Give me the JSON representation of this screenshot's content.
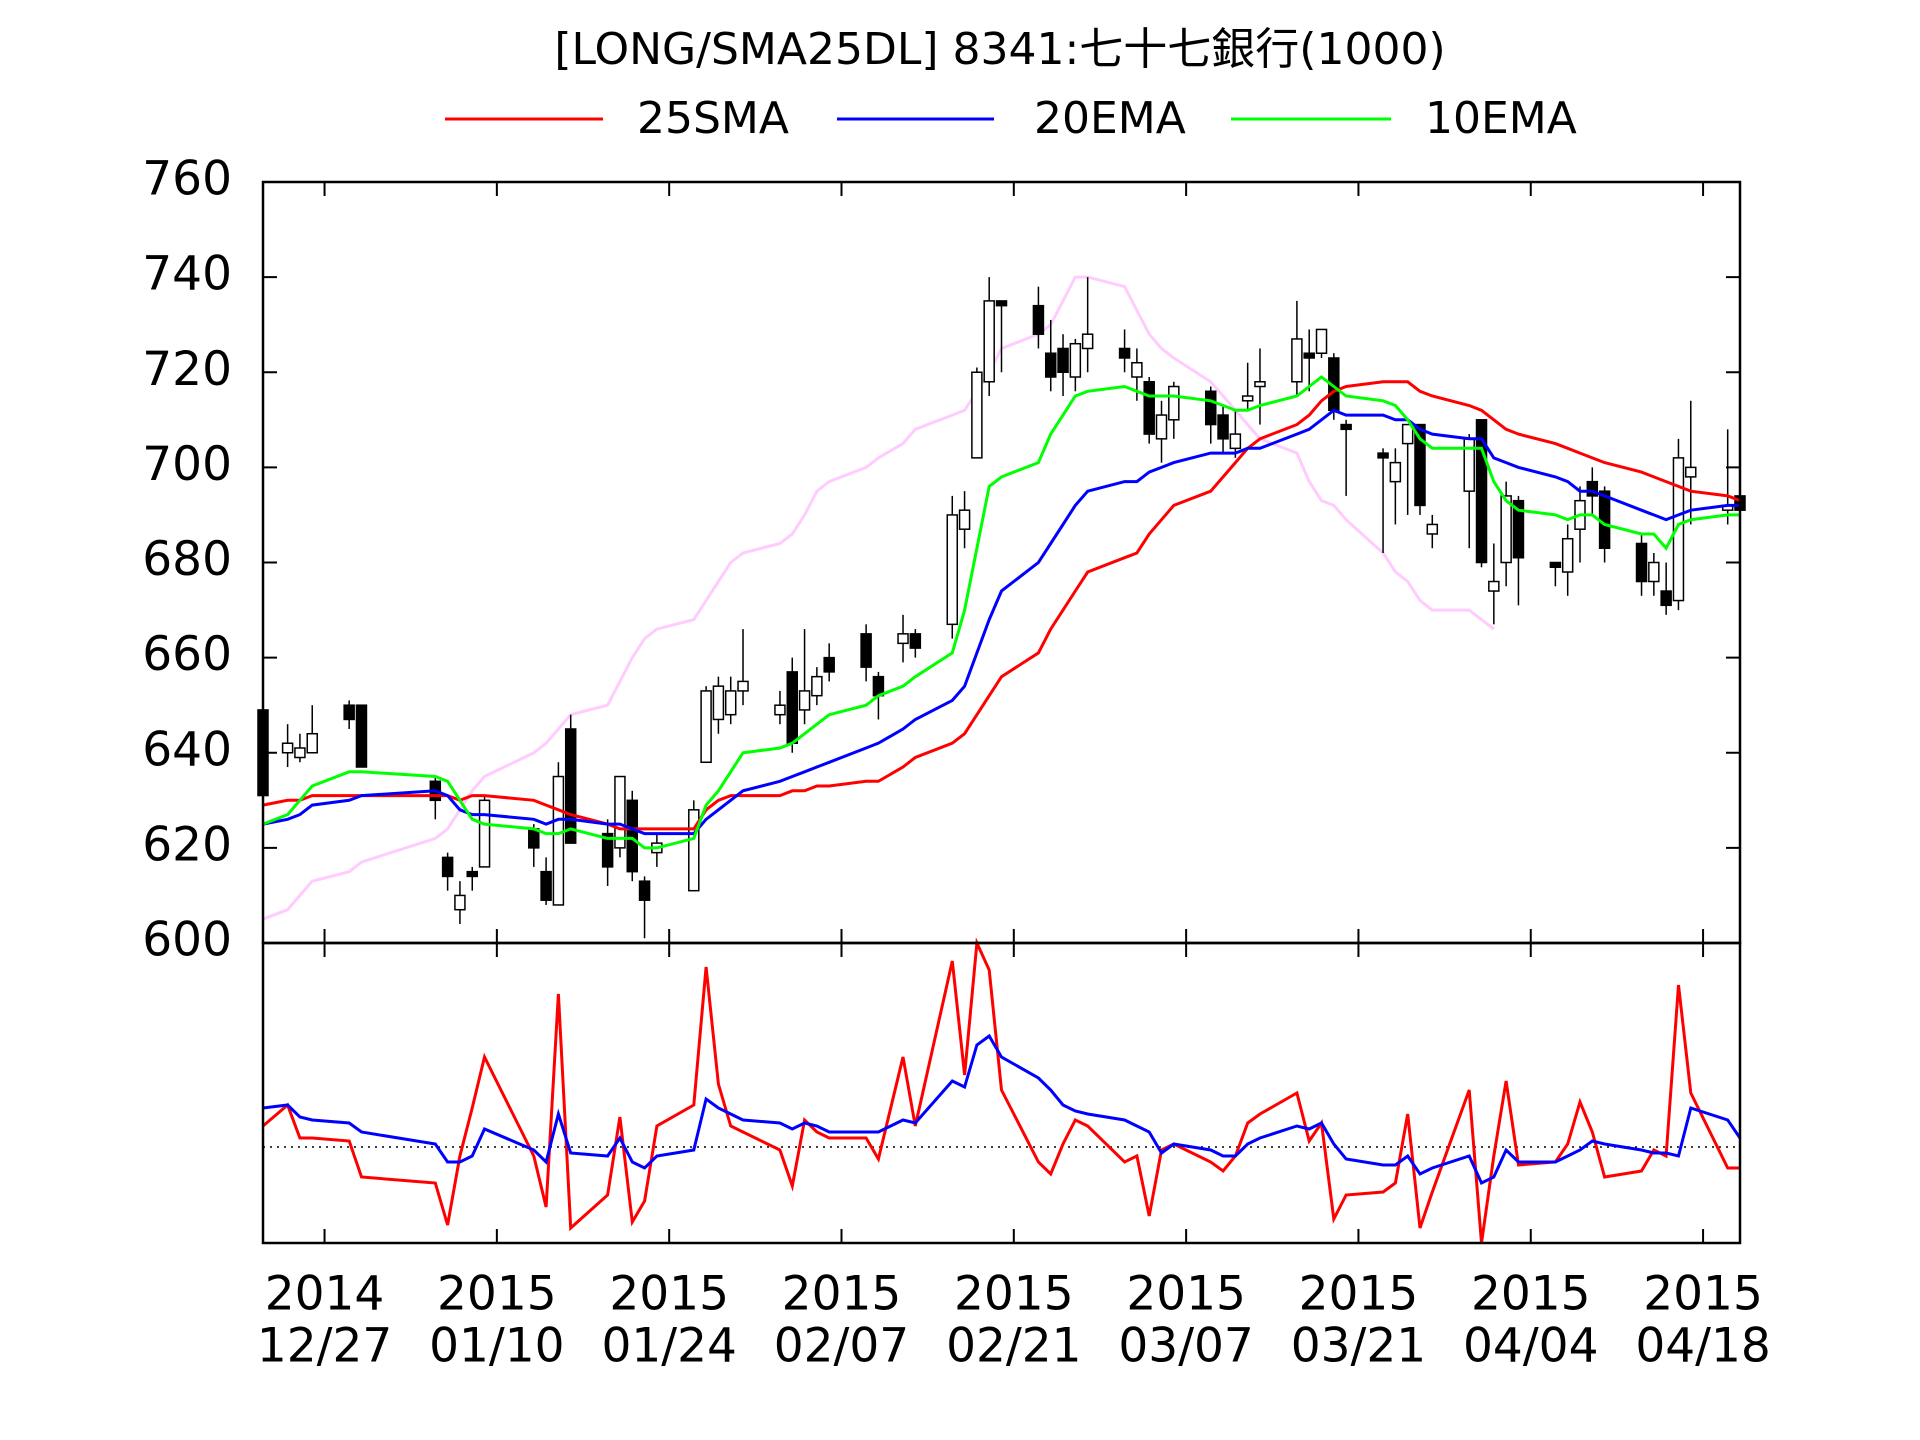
{
  "chart_data": [
    {
      "type": "candlestick",
      "title": "[LONG/SMA25DL] 8341:七十七銀行(1000)",
      "x": [
        "2014-12-22",
        "2014-12-24",
        "2014-12-25",
        "2014-12-26",
        "2014-12-29",
        "2014-12-30",
        "2015-01-05",
        "2015-01-06",
        "2015-01-07",
        "2015-01-08",
        "2015-01-09",
        "2015-01-13",
        "2015-01-14",
        "2015-01-15",
        "2015-01-16",
        "2015-01-19",
        "2015-01-20",
        "2015-01-21",
        "2015-01-22",
        "2015-01-23",
        "2015-01-26",
        "2015-01-27",
        "2015-01-28",
        "2015-01-29",
        "2015-01-30",
        "2015-02-02",
        "2015-02-03",
        "2015-02-04",
        "2015-02-05",
        "2015-02-06",
        "2015-02-09",
        "2015-02-10",
        "2015-02-12",
        "2015-02-13",
        "2015-02-16",
        "2015-02-17",
        "2015-02-18",
        "2015-02-19",
        "2015-02-20",
        "2015-02-23",
        "2015-02-24",
        "2015-02-25",
        "2015-02-26",
        "2015-02-27",
        "2015-03-02",
        "2015-03-03",
        "2015-03-04",
        "2015-03-05",
        "2015-03-06",
        "2015-03-09",
        "2015-03-10",
        "2015-03-11",
        "2015-03-12",
        "2015-03-13",
        "2015-03-16",
        "2015-03-17",
        "2015-03-18",
        "2015-03-19",
        "2015-03-20",
        "2015-03-23",
        "2015-03-24",
        "2015-03-25",
        "2015-03-26",
        "2015-03-27",
        "2015-03-30",
        "2015-03-31",
        "2015-04-01",
        "2015-04-02",
        "2015-04-03",
        "2015-04-06",
        "2015-04-07",
        "2015-04-08",
        "2015-04-09",
        "2015-04-10",
        "2015-04-13",
        "2015-04-14",
        "2015-04-15",
        "2015-04-16",
        "2015-04-17",
        "2015-04-20",
        "2015-04-21"
      ],
      "open": [
        649,
        640,
        639,
        640,
        650,
        650,
        634,
        618,
        607,
        615,
        616,
        624,
        615,
        608,
        645,
        623,
        620,
        630,
        613,
        619,
        611,
        638,
        647,
        648,
        653,
        648,
        657,
        649,
        652,
        660,
        665,
        656,
        663,
        665,
        667,
        687,
        702,
        718,
        735,
        734,
        724,
        725,
        719,
        725,
        725,
        719,
        718,
        706,
        710,
        716,
        711,
        704,
        714,
        717,
        718,
        724,
        724,
        723,
        709,
        703,
        697,
        705,
        709,
        686,
        695,
        710,
        674,
        680,
        693,
        680,
        678,
        687,
        697,
        695,
        684,
        676,
        674,
        672,
        698,
        691,
        694
      ],
      "high": [
        649,
        646,
        644,
        650,
        651,
        650,
        635,
        619,
        613,
        616,
        631,
        625,
        618,
        638,
        648,
        626,
        635,
        632,
        614,
        623,
        630,
        654,
        656,
        656,
        666,
        653,
        660,
        666,
        658,
        663,
        667,
        657,
        669,
        666,
        694,
        695,
        721,
        740,
        735,
        738,
        731,
        728,
        727,
        740,
        729,
        725,
        719,
        714,
        718,
        717,
        713,
        712,
        722,
        725,
        735,
        729,
        729,
        724,
        710,
        704,
        704,
        709,
        709,
        690,
        707,
        710,
        684,
        697,
        694,
        680,
        688,
        696,
        700,
        696,
        686,
        682,
        680,
        706,
        714,
        708,
        695
      ],
      "low": [
        631,
        637,
        638,
        640,
        645,
        637,
        626,
        611,
        604,
        611,
        616,
        616,
        608,
        608,
        621,
        612,
        618,
        613,
        601,
        616,
        611,
        638,
        644,
        646,
        650,
        646,
        640,
        646,
        650,
        655,
        655,
        647,
        659,
        660,
        664,
        683,
        702,
        715,
        720,
        725,
        716,
        715,
        716,
        720,
        720,
        714,
        705,
        701,
        706,
        705,
        703,
        702,
        712,
        709,
        715,
        716,
        723,
        710,
        694,
        682,
        688,
        690,
        690,
        683,
        683,
        679,
        667,
        675,
        671,
        675,
        673,
        680,
        690,
        680,
        673,
        673,
        669,
        670,
        688,
        688,
        690
      ],
      "close": [
        631,
        642,
        641,
        644,
        647,
        637,
        630,
        614,
        610,
        614,
        630,
        620,
        609,
        635,
        621,
        616,
        635,
        615,
        609,
        621,
        628,
        653,
        654,
        653,
        655,
        650,
        642,
        653,
        656,
        657,
        658,
        652,
        665,
        662,
        690,
        691,
        720,
        735,
        734,
        728,
        719,
        720,
        726,
        728,
        723,
        722,
        707,
        711,
        717,
        709,
        706,
        707,
        715,
        718,
        727,
        723,
        729,
        712,
        708,
        702,
        701,
        709,
        692,
        688,
        706,
        680,
        676,
        694,
        681,
        679,
        685,
        693,
        694,
        683,
        676,
        680,
        671,
        702,
        700,
        692,
        691
      ],
      "series": [
        {
          "name": "25SMA",
          "color": "#ff0000",
          "values": [
            629,
            630,
            630,
            631,
            631,
            631,
            631,
            631,
            630,
            631,
            631,
            630,
            629,
            628,
            627,
            625,
            624,
            624,
            624,
            624,
            624,
            628,
            630,
            631,
            631,
            631,
            632,
            632,
            633,
            633,
            634,
            634,
            637,
            639,
            642,
            644,
            648,
            652,
            656,
            661,
            666,
            670,
            674,
            678,
            681,
            682,
            686,
            689,
            692,
            695,
            698,
            701,
            704,
            706,
            709,
            711,
            714,
            716,
            717,
            718,
            718,
            718,
            716,
            715,
            713,
            712,
            710,
            708,
            707,
            705,
            704,
            703,
            702,
            701,
            699,
            698,
            697,
            696,
            695,
            694,
            693
          ]
        },
        {
          "name": "20EMA",
          "color": "#0000ff",
          "values": [
            625,
            626,
            627,
            629,
            630,
            631,
            632,
            631,
            628,
            627,
            627,
            626,
            625,
            626,
            626,
            625,
            625,
            624,
            623,
            623,
            623,
            626,
            628,
            630,
            632,
            634,
            635,
            636,
            637,
            638,
            641,
            642,
            645,
            647,
            651,
            654,
            661,
            668,
            674,
            680,
            684,
            688,
            692,
            695,
            697,
            697,
            699,
            700,
            701,
            703,
            703,
            703,
            704,
            704,
            707,
            708,
            710,
            712,
            711,
            711,
            710,
            710,
            708,
            707,
            706,
            706,
            702,
            701,
            700,
            698,
            697,
            695,
            695,
            694,
            691,
            690,
            689,
            690,
            691,
            692,
            692
          ]
        },
        {
          "name": "10EMA",
          "color": "#00ff00",
          "values": [
            625,
            627,
            630,
            633,
            636,
            636,
            635,
            634,
            630,
            626,
            625,
            624,
            623,
            623,
            624,
            622,
            622,
            622,
            620,
            620,
            622,
            629,
            632,
            636,
            640,
            641,
            642,
            644,
            646,
            648,
            650,
            652,
            654,
            656,
            661,
            670,
            683,
            696,
            698,
            701,
            707,
            711,
            715,
            716,
            717,
            716,
            715,
            715,
            715,
            714,
            713,
            712,
            712,
            713,
            715,
            717,
            719,
            717,
            715,
            714,
            713,
            710,
            706,
            704,
            704,
            704,
            697,
            693,
            691,
            690,
            689,
            690,
            690,
            688,
            686,
            686,
            683,
            688,
            689,
            690,
            690
          ]
        },
        {
          "color": "#ffccff",
          "values": [
            605,
            607,
            610,
            613,
            615,
            617,
            622,
            624,
            628,
            632,
            635,
            640,
            642,
            645,
            648,
            650,
            655,
            660,
            664,
            666,
            668,
            672,
            676,
            680,
            682,
            684,
            686,
            690,
            695,
            697,
            700,
            702,
            705,
            708,
            711,
            712,
            716,
            720,
            725,
            728,
            730,
            735,
            740,
            740,
            738,
            733,
            728,
            725,
            723,
            718,
            715,
            712,
            709,
            706,
            703,
            697,
            693,
            692,
            689,
            682,
            678,
            676,
            672,
            670,
            670,
            668,
            666,
            null,
            null,
            null,
            null,
            null,
            null,
            null,
            null,
            null,
            null,
            null,
            null,
            null,
            null
          ]
        }
      ],
      "xlim": [
        "2014-12-22",
        "2015-04-21"
      ],
      "ylim": [
        600,
        760
      ],
      "yticks": [
        600,
        620,
        640,
        660,
        680,
        700,
        720,
        740,
        760
      ],
      "up_color": "#ffffff",
      "down_color": "#000000"
    },
    {
      "type": "line",
      "series": [
        {
          "color": "#ff0000",
          "values": [
            7,
            14,
            3,
            3,
            2,
            -10,
            -12,
            -26,
            -3,
            13,
            30,
            -3,
            -20,
            51,
            -27,
            -16,
            10,
            -25,
            -18,
            7,
            14,
            60,
            21,
            7,
            5,
            -1,
            -13,
            9,
            5,
            3,
            3,
            -4,
            30,
            7,
            62,
            24,
            68,
            59,
            19,
            -5,
            -9,
            1,
            9,
            7,
            -5,
            -3,
            -23,
            -1,
            1,
            -5,
            -8,
            -3,
            8,
            11,
            18,
            2,
            8,
            -24,
            -16,
            -15,
            -12,
            11,
            -27,
            -15,
            19,
            -32,
            -3,
            22,
            -6,
            -5,
            1,
            15,
            5,
            -10,
            -8,
            -1,
            -3,
            54,
            18,
            -7,
            -7
          ]
        },
        {
          "color": "#0000ff",
          "values": [
            13,
            14,
            10,
            9,
            8,
            5,
            1,
            -5,
            -5,
            -3,
            6,
            -1,
            -5,
            11,
            -2,
            -3,
            3,
            -5,
            -7,
            -3,
            -1,
            16,
            13,
            11,
            9,
            8,
            6,
            8,
            7,
            5,
            5,
            5,
            9,
            8,
            22,
            20,
            34,
            37,
            30,
            23,
            19,
            14,
            12,
            11,
            9,
            7,
            5,
            -2,
            1,
            -1,
            -3,
            -3,
            1,
            3,
            7,
            6,
            8,
            1,
            -4,
            -6,
            -6,
            -3,
            -9,
            -7,
            -3,
            -12,
            -10,
            -1,
            -5,
            -5,
            -3,
            -1,
            2,
            1,
            -1,
            -2,
            -2,
            -3,
            13,
            9,
            3
          ]
        }
      ],
      "ylim": [
        -32,
        68
      ],
      "reference_line": 0,
      "xlim": [
        "2014-12-22",
        "2015-04-21"
      ],
      "xticks": [
        {
          "value": "2014-12-27",
          "label": [
            "2014",
            "12/27"
          ]
        },
        {
          "value": "2015-01-10",
          "label": [
            "2015",
            "01/10"
          ]
        },
        {
          "value": "2015-01-24",
          "label": [
            "2015",
            "01/24"
          ]
        },
        {
          "value": "2015-02-07",
          "label": [
            "2015",
            "02/07"
          ]
        },
        {
          "value": "2015-02-21",
          "label": [
            "2015",
            "02/21"
          ]
        },
        {
          "value": "2015-03-07",
          "label": [
            "2015",
            "03/07"
          ]
        },
        {
          "value": "2015-03-21",
          "label": [
            "2015",
            "03/21"
          ]
        },
        {
          "value": "2015-04-04",
          "label": [
            "2015",
            "04/04"
          ]
        },
        {
          "value": "2015-04-18",
          "label": [
            "2015",
            "04/18"
          ]
        }
      ]
    }
  ]
}
